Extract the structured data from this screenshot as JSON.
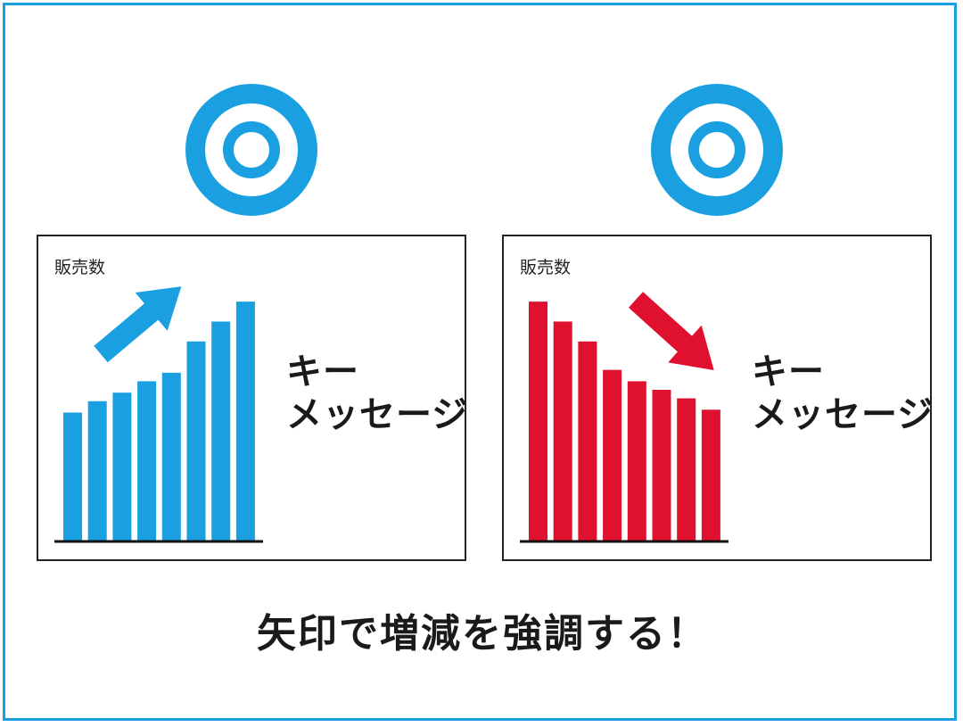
{
  "colors": {
    "accent": "#1aa0e0",
    "increase": "#1aa0e0",
    "decrease": "#e0102f",
    "ink": "#1a1a1a"
  },
  "icons": {
    "target": "double-circle-icon",
    "arrow_up": "arrow-up-right-icon",
    "arrow_down": "arrow-down-right-icon"
  },
  "caption": "矢印で増減を強調する！",
  "chart_data": [
    {
      "type": "bar",
      "ylabel": "販売数",
      "key_message": [
        "キー",
        "メッセージ"
      ],
      "trend": "increase",
      "values": [
        45,
        49,
        52,
        56,
        59,
        70,
        77,
        84
      ],
      "ylim": [
        0,
        90
      ]
    },
    {
      "type": "bar",
      "ylabel": "販売数",
      "key_message": [
        "キー",
        "メッセージ"
      ],
      "trend": "decrease",
      "values": [
        84,
        77,
        70,
        60,
        56,
        53,
        50,
        46
      ],
      "ylim": [
        0,
        90
      ]
    }
  ]
}
